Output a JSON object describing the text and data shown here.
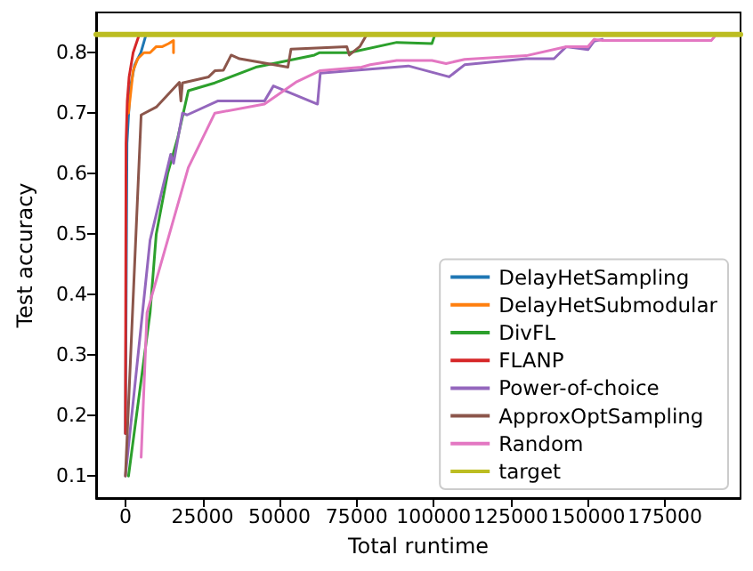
{
  "chart_data": {
    "type": "line",
    "xlabel": "Total runtime",
    "ylabel": "Test accuracy",
    "xlim": [
      -9500,
      199500
    ],
    "xticks": [
      0,
      25000,
      50000,
      75000,
      100000,
      125000,
      150000,
      175000
    ],
    "ylim": [
      0.0635,
      0.8665
    ],
    "yticks": [
      0.1,
      0.2,
      0.3,
      0.4,
      0.5,
      0.6,
      0.7,
      0.8
    ],
    "grid": false,
    "legend": "bottom right",
    "marker": "none",
    "line_style": "solid",
    "series": [
      {
        "name": "DelayHetSampling",
        "color": "#1f77b4",
        "x": [
          0,
          500,
          1500,
          3000,
          5000,
          6700
        ],
        "values": [
          0.17,
          0.65,
          0.74,
          0.78,
          0.8,
          0.83
        ]
      },
      {
        "name": "DelayHetSubmodular",
        "color": "#ff7f0e",
        "x": [
          1000,
          2500,
          4000,
          6000,
          8000,
          10000,
          12000,
          14000,
          15600,
          15600
        ],
        "values": [
          0.7,
          0.77,
          0.79,
          0.8,
          0.8,
          0.81,
          0.81,
          0.815,
          0.82,
          0.8
        ]
      },
      {
        "name": "DivFL",
        "color": "#2ca02c",
        "x": [
          1000,
          8000,
          10000,
          13700,
          17000,
          20400,
          29000,
          42300,
          61300,
          63000,
          72600,
          88000,
          99400,
          100400
        ],
        "values": [
          0.1,
          0.37,
          0.5,
          0.6,
          0.66,
          0.737,
          0.75,
          0.776,
          0.796,
          0.8,
          0.8,
          0.817,
          0.815,
          0.83
        ]
      },
      {
        "name": "FLANP",
        "color": "#d62728",
        "x": [
          0,
          200,
          600,
          1200,
          2500,
          4500
        ],
        "values": [
          0.17,
          0.65,
          0.72,
          0.76,
          0.8,
          0.83
        ]
      },
      {
        "name": "Power-of-choice",
        "color": "#9467bd",
        "x": [
          0,
          8000,
          14700,
          15600,
          18500,
          20000,
          29900,
          45100,
          48000,
          62300,
          63200,
          91800,
          105000,
          110000,
          130000,
          139000,
          143000,
          150000,
          152000,
          154700
        ],
        "values": [
          0.1,
          0.49,
          0.632,
          0.617,
          0.7,
          0.697,
          0.72,
          0.72,
          0.745,
          0.715,
          0.766,
          0.778,
          0.76,
          0.78,
          0.79,
          0.79,
          0.81,
          0.805,
          0.819,
          0.822
        ]
      },
      {
        "name": "ApproxOptSampling",
        "color": "#8c564b",
        "x": [
          0,
          5100,
          10000,
          17500,
          18000,
          18500,
          27000,
          29000,
          31800,
          34300,
          37000,
          52700,
          53700,
          71800,
          72600,
          76000,
          78300
        ],
        "values": [
          0.1,
          0.697,
          0.71,
          0.751,
          0.72,
          0.75,
          0.76,
          0.77,
          0.771,
          0.796,
          0.79,
          0.776,
          0.806,
          0.81,
          0.796,
          0.81,
          0.83
        ]
      },
      {
        "name": "Random",
        "color": "#e377c2",
        "x": [
          5100,
          7000,
          20400,
          29000,
          45100,
          55600,
          63000,
          76600,
          79400,
          88000,
          99400,
          104000,
          110000,
          130000,
          143000,
          150000,
          152000,
          154700,
          190000,
          191000
        ],
        "values": [
          0.131,
          0.37,
          0.61,
          0.7,
          0.715,
          0.752,
          0.77,
          0.776,
          0.78,
          0.787,
          0.787,
          0.782,
          0.789,
          0.795,
          0.81,
          0.81,
          0.822,
          0.82,
          0.82,
          0.826
        ]
      },
      {
        "name": "target",
        "color": "#bcbd22",
        "x": [
          -9500,
          199500
        ],
        "values": [
          0.83,
          0.83
        ]
      }
    ]
  }
}
